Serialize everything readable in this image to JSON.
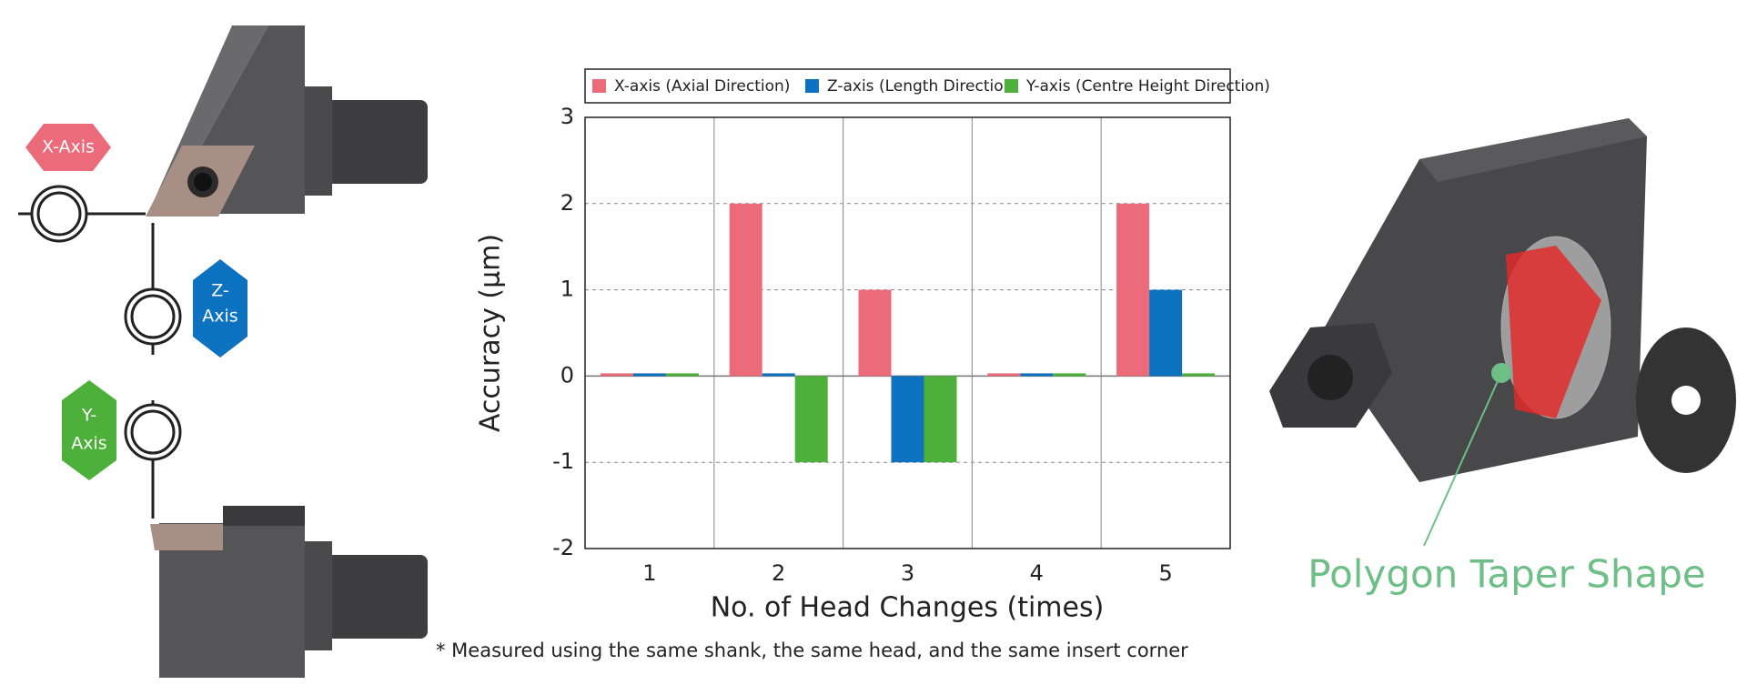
{
  "chart_data": {
    "type": "bar",
    "categories": [
      "1",
      "2",
      "3",
      "4",
      "5"
    ],
    "series": [
      {
        "name": "X-axis (Axial Direction)",
        "color": "#ec6b7a",
        "values": [
          0,
          2,
          1,
          0,
          2
        ]
      },
      {
        "name": "Z-axis (Length Direction)",
        "color": "#0d72bf",
        "values": [
          0,
          0,
          -1,
          0,
          1
        ]
      },
      {
        "name": "Y-axis (Centre Height Direction)",
        "color": "#4db03a",
        "values": [
          0,
          -1,
          -1,
          0,
          0
        ]
      }
    ],
    "ylim": [
      -2,
      3
    ],
    "yticks": [
      -2,
      -1,
      0,
      1,
      2,
      3
    ],
    "y_label": "Accuracy (μm)",
    "x_label": "No. of Head Changes (times)",
    "grid": true,
    "legend": "top",
    "footnote": "* Measured using the same shank, the same head, and the same insert corner"
  },
  "illustration": {
    "x_axis_tag": "X-Axis",
    "z_axis_tag": [
      "Z-",
      "Axis"
    ],
    "y_axis_tag": [
      "Y-",
      "Axis"
    ],
    "callout": "Polygon Taper Shape"
  }
}
